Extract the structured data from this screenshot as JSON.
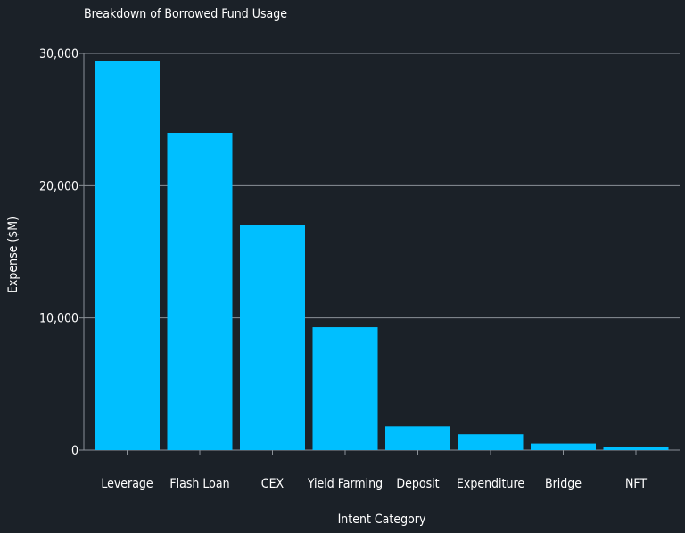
{
  "chart_data": {
    "type": "bar",
    "title": "Breakdown of Borrowed Fund Usage",
    "xlabel": "Intent Category",
    "ylabel": "Expense ($M)",
    "categories": [
      "Leverage",
      "Flash Loan",
      "CEX",
      "Yield Farming",
      "Deposit",
      "Expenditure",
      "Bridge",
      "NFT"
    ],
    "values": [
      29400,
      24000,
      17000,
      9300,
      1800,
      1200,
      500,
      250
    ],
    "ylim": [
      0,
      30000
    ],
    "yticks": [
      0,
      10000,
      20000,
      30000
    ],
    "ytick_labels": [
      "0",
      "10,000",
      "20,000",
      "30,000"
    ],
    "grid": true,
    "bar_color": "#00bfff",
    "background_color": "#1b2128",
    "legend": "none"
  }
}
